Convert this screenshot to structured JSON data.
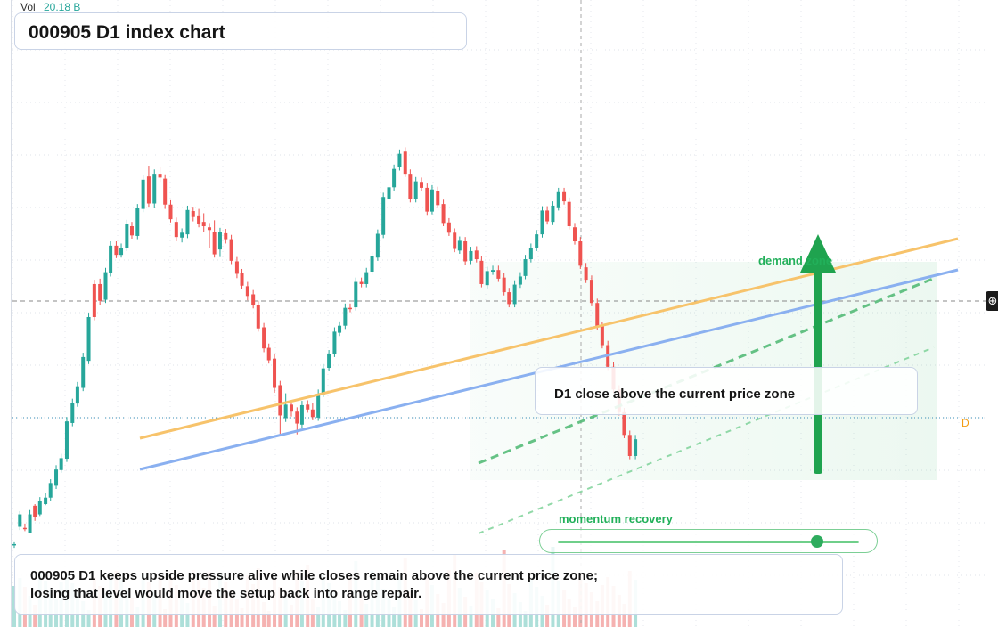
{
  "header": {
    "vol_label": "Vol",
    "vol_value": "20.18 B"
  },
  "title": "000905 D1 index chart",
  "callout": "D1 close above the current price zone",
  "zone_label": "demand zone",
  "momentum": {
    "label": "momentum recovery",
    "level": 0.86
  },
  "summary": {
    "line1": "000905 D1 keeps upside pressure alive while closes remain above the current price zone;",
    "line2": "losing that level would move the setup back into range repair."
  },
  "badge": "D",
  "colors": {
    "up": "#26a69a",
    "down": "#ef5350",
    "accent": "#22b05a",
    "trend_orange": "#f7c36b",
    "trend_blue": "#8ab0f0"
  },
  "chart_data": {
    "type": "candlestick",
    "ylim": [
      0,
      100
    ],
    "price_zone_level": 37.4,
    "last_price_level": 20.5,
    "candles": [
      [
        1,
        1,
        0.9,
        1.5,
        0.3,
        0
      ],
      [
        3,
        6.5,
        4.2,
        7.1,
        3.6,
        0
      ],
      [
        2,
        4,
        4,
        4.8,
        3.4,
        1
      ],
      [
        1,
        3,
        6.5,
        7.3,
        5.1,
        0
      ],
      [
        2,
        8.1,
        6,
        8.4,
        5.3,
        1
      ],
      [
        2,
        6.5,
        8.9,
        9.7,
        6.2,
        0
      ],
      [
        3,
        8.4,
        9.6,
        10.4,
        8.2,
        0
      ],
      [
        2,
        9.6,
        12.3,
        13,
        9,
        0
      ],
      [
        3,
        11.8,
        14.8,
        15.6,
        11.2,
        0
      ],
      [
        2,
        14.7,
        16.9,
        17.7,
        14.2,
        0
      ],
      [
        4,
        16.8,
        23.7,
        24.5,
        16.2,
        0
      ],
      [
        3,
        23.4,
        27.1,
        27.9,
        22.8,
        0
      ],
      [
        2,
        27,
        30.2,
        31,
        26.4,
        0
      ],
      [
        4,
        29.9,
        35.6,
        36.4,
        29.3,
        0
      ],
      [
        3,
        34.9,
        43,
        43.8,
        34.3,
        0
      ],
      [
        3,
        43,
        49.1,
        49.9,
        42.4,
        1
      ],
      [
        4,
        49.1,
        46,
        50.1,
        45.2,
        1
      ],
      [
        3,
        46.2,
        51.3,
        52.1,
        45.6,
        0
      ],
      [
        2,
        51.1,
        56.2,
        57,
        50.5,
        0
      ],
      [
        3,
        56.2,
        54.5,
        57,
        53.9,
        1
      ],
      [
        2,
        54.5,
        55.8,
        56.6,
        54,
        0
      ],
      [
        3,
        55.8,
        60.2,
        61,
        55.2,
        0
      ],
      [
        2,
        59.8,
        58.1,
        60.6,
        57.5,
        1
      ],
      [
        4,
        58,
        63.1,
        63.9,
        57.4,
        0
      ],
      [
        3,
        63,
        68.4,
        69.2,
        62.4,
        0
      ],
      [
        4,
        69,
        64,
        71,
        63.4,
        1
      ],
      [
        4,
        64,
        69.5,
        70.3,
        63.2,
        0
      ],
      [
        4,
        69.5,
        68.8,
        70.8,
        68,
        1
      ],
      [
        2,
        68.6,
        63.8,
        69.4,
        63,
        1
      ],
      [
        4,
        63.8,
        61.1,
        64.6,
        60.5,
        1
      ],
      [
        3,
        60.6,
        57.8,
        61.4,
        57,
        1
      ],
      [
        3,
        57.7,
        58.6,
        59.4,
        56.8,
        0
      ],
      [
        4,
        58.3,
        62.8,
        63.6,
        57.6,
        0
      ],
      [
        3,
        62.6,
        61.5,
        63.4,
        60.7,
        1
      ],
      [
        4,
        61.8,
        60.3,
        63,
        59.6,
        1
      ],
      [
        2,
        60.6,
        59.8,
        62.2,
        58.8,
        1
      ],
      [
        4,
        59.6,
        59.1,
        60.4,
        55.8,
        1
      ],
      [
        2,
        58.8,
        54.6,
        60.9,
        54,
        1
      ],
      [
        4,
        55.5,
        58.7,
        59.5,
        54.1,
        0
      ],
      [
        3,
        58.5,
        57.4,
        59.3,
        56.6,
        1
      ],
      [
        4,
        57.4,
        53.4,
        58.2,
        52.8,
        1
      ],
      [
        3,
        53.3,
        51,
        54.1,
        50.2,
        1
      ],
      [
        2,
        51.1,
        48.8,
        51.9,
        48.2,
        1
      ],
      [
        4,
        48.7,
        46.9,
        49.5,
        46.1,
        1
      ],
      [
        3,
        47.2,
        45.2,
        48,
        44.6,
        1
      ],
      [
        2,
        45.2,
        40.9,
        46,
        40.3,
        1
      ],
      [
        3,
        41.1,
        37.2,
        41.9,
        36.5,
        1
      ],
      [
        2,
        37.3,
        35,
        38.1,
        34.4,
        1
      ],
      [
        3,
        35.3,
        29.9,
        36.1,
        29,
        1
      ],
      [
        3,
        30.4,
        24.8,
        31.2,
        21.3,
        1
      ],
      [
        3,
        24.3,
        26.8,
        28.9,
        23.6,
        0
      ],
      [
        4,
        26.8,
        25.5,
        27.6,
        24.6,
        1
      ],
      [
        3,
        25.5,
        23.3,
        26.3,
        21.3,
        1
      ],
      [
        2,
        23.1,
        26.7,
        27.5,
        22.4,
        0
      ],
      [
        3,
        26.8,
        25.9,
        27.6,
        25.3,
        1
      ],
      [
        2,
        25.9,
        24.5,
        27.1,
        23.9,
        1
      ],
      [
        3,
        24.4,
        28.8,
        29.6,
        23.8,
        0
      ],
      [
        2,
        28.7,
        33.5,
        34.3,
        28.2,
        0
      ],
      [
        4,
        33.6,
        36.2,
        36.9,
        33,
        0
      ],
      [
        3,
        36.2,
        40.3,
        41.1,
        35.6,
        0
      ],
      [
        2,
        40.1,
        41.4,
        42.2,
        39.5,
        0
      ],
      [
        3,
        41.4,
        44.7,
        45.5,
        40.8,
        0
      ],
      [
        2,
        44.7,
        44.6,
        45.5,
        43.9,
        1
      ],
      [
        4,
        44.8,
        49.5,
        50.3,
        44.2,
        0
      ],
      [
        3,
        49.5,
        49.1,
        50.3,
        48.5,
        1
      ],
      [
        2,
        49.1,
        51.3,
        52.1,
        48.5,
        0
      ],
      [
        3,
        51.4,
        54.2,
        55,
        50.8,
        0
      ],
      [
        4,
        54,
        58.4,
        59.2,
        53.4,
        0
      ],
      [
        4,
        58.2,
        65.2,
        66,
        57.6,
        0
      ],
      [
        3,
        64.9,
        67,
        67.8,
        64.3,
        0
      ],
      [
        2,
        67,
        70.4,
        71.2,
        66.4,
        0
      ],
      [
        4,
        70.7,
        73.2,
        74,
        70.1,
        0
      ],
      [
        3,
        73.6,
        69.5,
        74.4,
        68.9,
        1
      ],
      [
        2,
        69.5,
        64.8,
        70.3,
        64.2,
        1
      ],
      [
        3,
        64.8,
        68.1,
        68.9,
        64.2,
        0
      ],
      [
        4,
        68,
        66.9,
        68.8,
        66.3,
        1
      ],
      [
        3,
        66.9,
        62.5,
        67.7,
        61.9,
        1
      ],
      [
        2,
        62.5,
        66.6,
        67.4,
        62,
        0
      ],
      [
        4,
        66.3,
        63.7,
        67.1,
        63.1,
        1
      ],
      [
        3,
        63.9,
        60.4,
        64.7,
        59.8,
        1
      ],
      [
        3,
        60.5,
        58.6,
        61.3,
        58,
        1
      ],
      [
        4,
        58.6,
        55.6,
        59.4,
        55,
        1
      ],
      [
        2,
        55.3,
        57.1,
        57.9,
        54.7,
        0
      ],
      [
        3,
        57,
        53.3,
        57.8,
        52.7,
        1
      ],
      [
        4,
        53.4,
        55.2,
        56,
        52.8,
        0
      ],
      [
        3,
        55.3,
        53.7,
        56.1,
        53.1,
        1
      ],
      [
        2,
        53.4,
        49.1,
        54.2,
        48.5,
        1
      ],
      [
        4,
        48.9,
        51.5,
        52.3,
        48.3,
        0
      ],
      [
        3,
        51.4,
        51.7,
        52.5,
        50.8,
        0
      ],
      [
        3,
        51.7,
        50.1,
        52.5,
        49.5,
        1
      ],
      [
        3,
        50.3,
        47.6,
        51.1,
        47,
        1
      ],
      [
        2,
        47.6,
        45.4,
        48.4,
        44.8,
        1
      ],
      [
        4,
        45.4,
        49,
        49.8,
        44.8,
        0
      ],
      [
        3,
        49,
        50.5,
        51.3,
        48.4,
        0
      ],
      [
        2,
        50.6,
        53.7,
        54.5,
        50,
        0
      ],
      [
        3,
        53.7,
        55.8,
        56.6,
        53.1,
        0
      ],
      [
        4,
        55.8,
        58.3,
        59.1,
        55.2,
        0
      ],
      [
        3,
        58.3,
        62.7,
        63.5,
        57.7,
        0
      ],
      [
        2,
        62.7,
        60.7,
        63.5,
        60.1,
        1
      ],
      [
        3,
        60.6,
        63.6,
        64.4,
        60,
        0
      ],
      [
        4,
        63.3,
        66.1,
        66.9,
        62.7,
        0
      ],
      [
        3,
        66.1,
        64.4,
        66.9,
        63.8,
        1
      ],
      [
        2,
        64.3,
        59.8,
        65.1,
        59.2,
        1
      ],
      [
        3,
        59.6,
        57,
        60.4,
        56.4,
        1
      ],
      [
        4,
        57,
        52.5,
        57.8,
        51.9,
        1
      ],
      [
        3,
        52.2,
        49.9,
        53,
        49.3,
        1
      ],
      [
        3,
        49.9,
        45.6,
        50.7,
        45,
        1
      ],
      [
        4,
        45.6,
        41.3,
        46.4,
        40.7,
        1
      ],
      [
        2,
        41.3,
        37.8,
        42.1,
        37.2,
        1
      ],
      [
        3,
        37.8,
        33.8,
        38.6,
        33.2,
        1
      ],
      [
        4,
        33.8,
        29.6,
        34.6,
        29,
        1
      ],
      [
        3,
        29.6,
        25.4,
        30.4,
        24.8,
        1
      ],
      [
        2,
        25.4,
        21.2,
        26.2,
        20.6,
        1
      ],
      [
        3,
        21.2,
        17.3,
        22,
        16.7,
        1
      ],
      [
        4,
        17.3,
        20.4,
        21.2,
        16.7,
        0
      ]
    ]
  }
}
